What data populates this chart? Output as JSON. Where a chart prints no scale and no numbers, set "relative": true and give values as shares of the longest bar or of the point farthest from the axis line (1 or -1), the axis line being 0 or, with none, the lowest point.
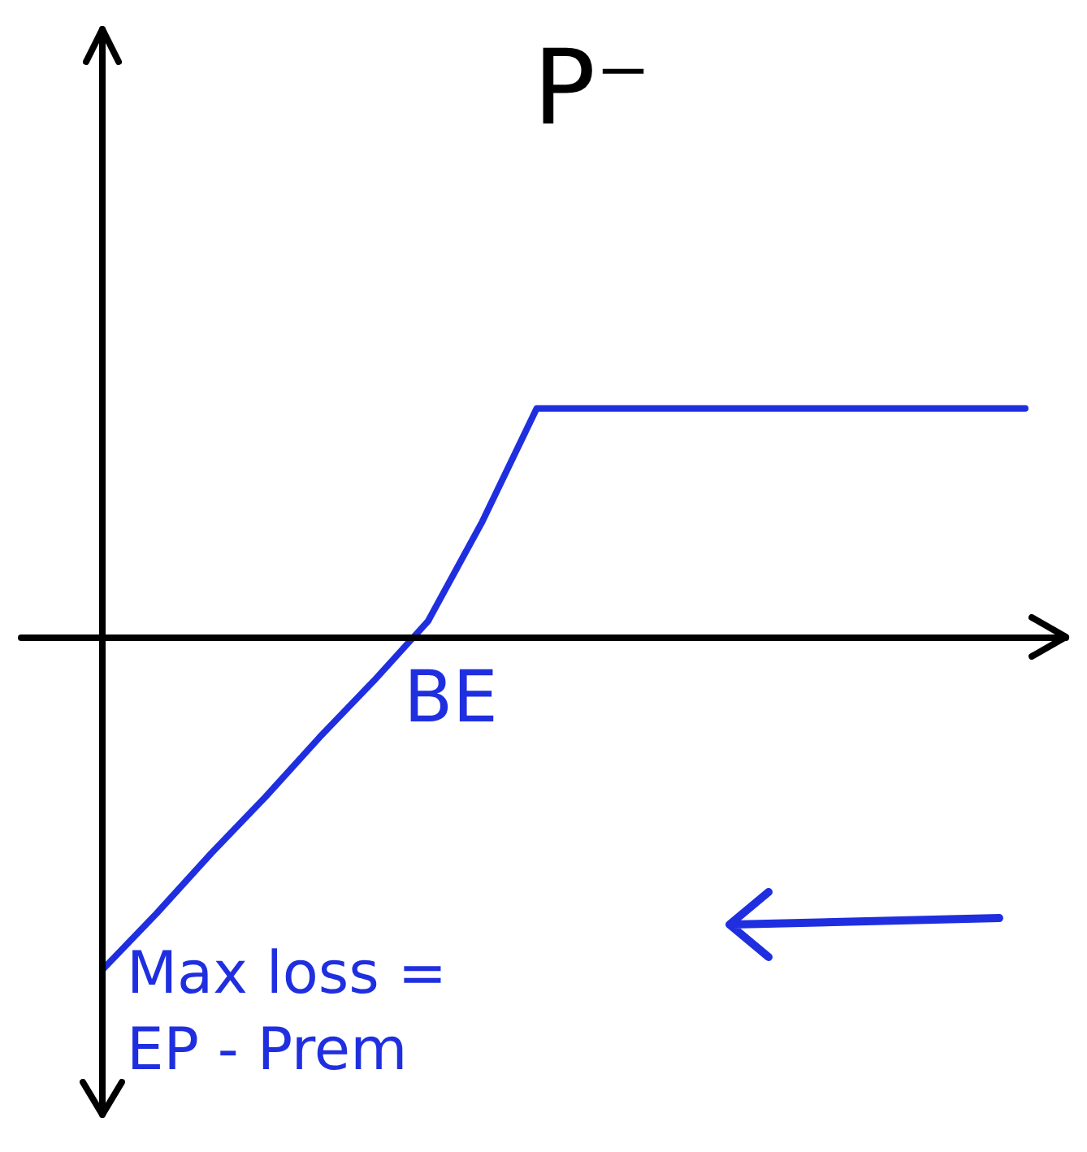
{
  "chart_data": {
    "type": "line",
    "title": "P⁻",
    "relative": true,
    "tick_labels": false,
    "marker": "none",
    "line_style": "solid",
    "categories": [
      null,
      null,
      null,
      null,
      null,
      null,
      null,
      null,
      null,
      null,
      null,
      null,
      null,
      null,
      null,
      null,
      null,
      null
    ],
    "series": [
      {
        "color": "#1f2fe0",
        "values": [
          -1,
          -0.83,
          -0.65,
          -0.48,
          -0.3,
          -0.13,
          0.05,
          0.35,
          0.69,
          0.69,
          0.69,
          0.69,
          0.69,
          0.69,
          0.69,
          0.69,
          0.69,
          0.69
        ]
      }
    ],
    "annotations": [
      "BE",
      "Max loss = EP - Prem"
    ]
  }
}
